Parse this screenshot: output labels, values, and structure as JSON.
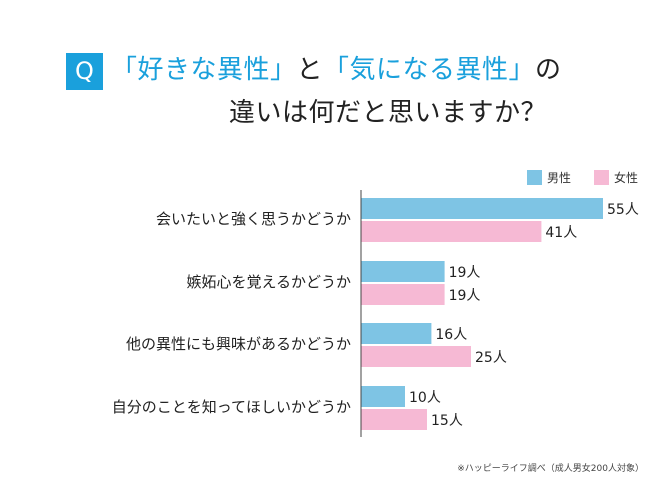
{
  "title": {
    "q_label": "Q",
    "line1": {
      "p1": "「好きな異性」",
      "p2": "と",
      "p3": "「気になる異性」",
      "p4": "の"
    },
    "line2": "違いは何だと思いますか？"
  },
  "colors": {
    "accent": "#1aa0dc",
    "male": "#7ec4e4",
    "female": "#f6b9d4"
  },
  "chart_data": {
    "type": "bar",
    "orientation": "horizontal",
    "categories": [
      "会いたいと強く思うかどうか",
      "嫉妬心を覚えるかどうか",
      "他の異性にも興味があるかどうか",
      "自分のことを知ってほしいかどうか"
    ],
    "series": [
      {
        "name": "男性",
        "values": [
          55,
          19,
          16,
          10
        ],
        "color": "#7ec4e4"
      },
      {
        "name": "女性",
        "values": [
          41,
          19,
          25,
          15
        ],
        "color": "#f6b9d4"
      }
    ],
    "value_suffix": "人",
    "xlim": [
      0,
      60
    ],
    "legend_position": "top-right",
    "grid": false
  },
  "footnote": "※ハッピーライフ調べ（成人男女200人対象）"
}
